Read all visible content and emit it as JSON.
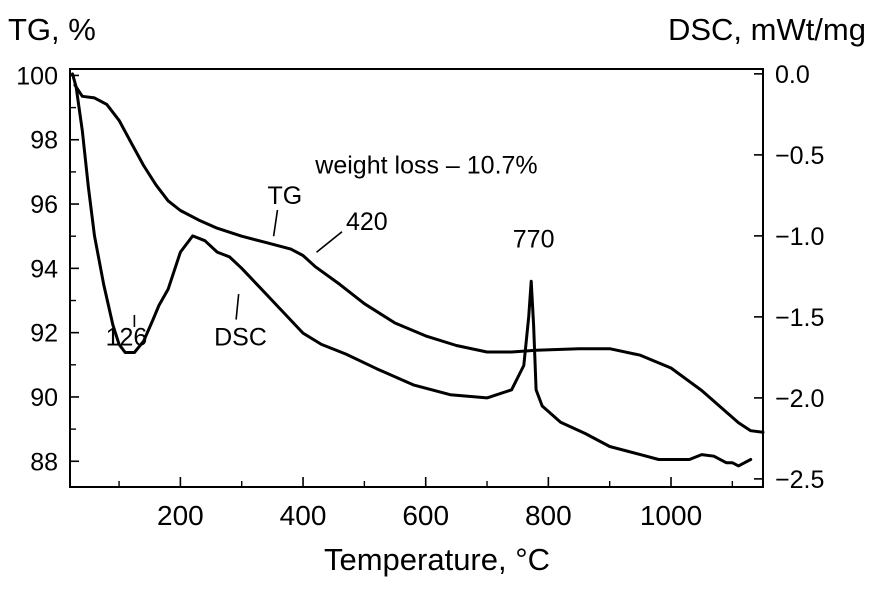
{
  "chart_data": {
    "type": "line",
    "title": "",
    "xlabel": "Temperature, °C",
    "ylabel_left": "TG, %",
    "ylabel_right": "DSC, mWt/mg",
    "xlim": [
      20,
      1150
    ],
    "ylim_left": [
      87.2,
      100.2
    ],
    "ylim_right": [
      -2.55,
      0.03
    ],
    "xticks": [
      {
        "value": 200,
        "label": "200"
      },
      {
        "value": 400,
        "label": "400"
      },
      {
        "value": 600,
        "label": "600"
      },
      {
        "value": 800,
        "label": "800"
      },
      {
        "value": 1000,
        "label": "1000"
      }
    ],
    "yticks_left": [
      {
        "value": 100,
        "label": "100"
      },
      {
        "value": 98,
        "label": "98"
      },
      {
        "value": 96,
        "label": "96"
      },
      {
        "value": 94,
        "label": "94"
      },
      {
        "value": 92,
        "label": "92"
      },
      {
        "value": 90,
        "label": "90"
      },
      {
        "value": 88,
        "label": "88"
      }
    ],
    "yticks_right": [
      {
        "value": 0.0,
        "label": "0.0"
      },
      {
        "value": -0.5,
        "label": "−0.5"
      },
      {
        "value": -1.0,
        "label": "−1.0"
      },
      {
        "value": -1.5,
        "label": "−1.5"
      },
      {
        "value": -2.0,
        "label": "−2.0"
      },
      {
        "value": -2.5,
        "label": "−2.5"
      }
    ],
    "grid": false,
    "series": [
      {
        "name": "TG",
        "axis": "left",
        "color": "#000000",
        "x": [
          28,
          40,
          60,
          80,
          100,
          120,
          140,
          160,
          180,
          200,
          230,
          260,
          300,
          340,
          380,
          400,
          420,
          460,
          500,
          550,
          600,
          650,
          700,
          740,
          780,
          850,
          900,
          950,
          1000,
          1050,
          1080,
          1110,
          1130,
          1150
        ],
        "y": [
          99.7,
          99.35,
          99.3,
          99.1,
          98.6,
          97.9,
          97.2,
          96.6,
          96.1,
          95.8,
          95.5,
          95.25,
          95.0,
          94.8,
          94.6,
          94.4,
          94.05,
          93.5,
          92.9,
          92.3,
          91.9,
          91.6,
          91.4,
          91.4,
          91.45,
          91.5,
          91.5,
          91.3,
          90.9,
          90.2,
          89.7,
          89.2,
          88.95,
          88.9
        ]
      },
      {
        "name": "DSC",
        "axis": "right",
        "color": "#000000",
        "x": [
          24,
          30,
          40,
          50,
          60,
          75,
          90,
          100,
          110,
          125,
          140,
          155,
          165,
          180,
          200,
          220,
          240,
          260,
          280,
          300,
          330,
          370,
          400,
          430,
          470,
          520,
          580,
          640,
          700,
          740,
          760,
          768,
          772,
          776,
          780,
          790,
          820,
          860,
          900,
          950,
          980,
          1000,
          1030,
          1050,
          1070,
          1090,
          1100,
          1110,
          1120,
          1130
        ],
        "y": [
          0.0,
          -0.08,
          -0.35,
          -0.7,
          -1.0,
          -1.3,
          -1.55,
          -1.67,
          -1.72,
          -1.72,
          -1.65,
          -1.52,
          -1.43,
          -1.33,
          -1.1,
          -1.0,
          -1.03,
          -1.1,
          -1.13,
          -1.2,
          -1.32,
          -1.48,
          -1.6,
          -1.67,
          -1.73,
          -1.82,
          -1.92,
          -1.98,
          -2.0,
          -1.95,
          -1.8,
          -1.5,
          -1.28,
          -1.55,
          -1.95,
          -2.05,
          -2.15,
          -2.22,
          -2.3,
          -2.35,
          -2.38,
          -2.38,
          -2.38,
          -2.35,
          -2.36,
          -2.4,
          -2.4,
          -2.42,
          -2.4,
          -2.38
        ]
      }
    ],
    "annotations": [
      {
        "text": "weight loss – 10.7%",
        "x": 420,
        "y_left": 96.95
      },
      {
        "text": "TG",
        "x": 342,
        "y_left": 96.0,
        "line_to": {
          "x": 352,
          "y_left": 95.0
        }
      },
      {
        "text": "420",
        "x": 470,
        "y_left": 95.2,
        "line_to": {
          "x": 422,
          "y_left": 94.5
        }
      },
      {
        "text": "770",
        "x": 742,
        "y_left": 94.65
      },
      {
        "text": "126",
        "x": 78,
        "y_left": 91.6,
        "line_to": {
          "x": 125,
          "y_left": 92.55
        }
      },
      {
        "text": "DSC",
        "x": 255,
        "y_left": 91.6,
        "line_to": {
          "x": 295,
          "y_left": 93.2
        }
      }
    ]
  }
}
